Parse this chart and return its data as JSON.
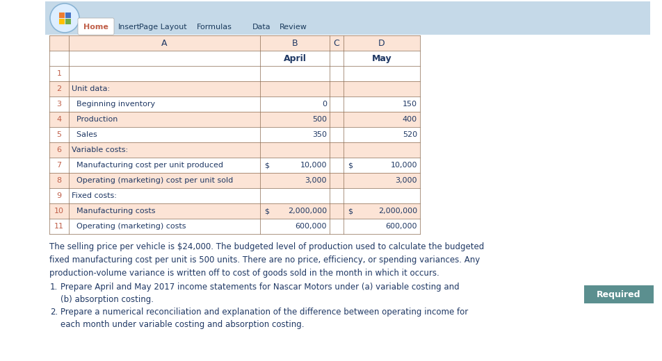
{
  "ribbon_tabs": [
    "Home",
    "Insert",
    "Page Layout",
    "Formulas",
    "Data",
    "Review"
  ],
  "col_b_label": "April",
  "col_d_label": "May",
  "paragraph_text": "The selling price per vehicle is $24,000. The budgeted level of production used to calculate the budgeted\nfixed manufacturing cost per unit is 500 units. There are no price, efficiency, or spending variances. Any\nproduction-volume variance is written off to cost of goods sold in the month in which it occurs.",
  "required_items": [
    "Prepare April and May 2017 income statements for Nascar Motors under (a) variable costing and\n(b) absorption costing.",
    "Prepare a numerical reconciliation and explanation of the difference between operating income for\neach month under variable costing and absorption costing."
  ],
  "required_label": "Required",
  "bg_color": "#ffffff",
  "ribbon_bg": "#c5d9e8",
  "row_number_color": "#c0604a",
  "cell_bg_alt": "#fce4d6",
  "cell_bg_header": "#fce4d6",
  "table_border_color": "#8a6a50",
  "text_color_blue": "#1f3864",
  "text_color_orange": "#c0604a",
  "required_bg": "#5b8f8f",
  "required_text_color": "#ffffff",
  "home_tab_bg": "#ffffff",
  "row_data": [
    {
      "rnum": "1",
      "label": "",
      "april": "",
      "may": "",
      "april_dollar": false,
      "may_dollar": false,
      "shaded": false
    },
    {
      "rnum": "2",
      "label": "Unit data:",
      "april": "",
      "may": "",
      "april_dollar": false,
      "may_dollar": false,
      "shaded": true
    },
    {
      "rnum": "3",
      "label": "  Beginning inventory",
      "april": "0",
      "may": "150",
      "april_dollar": false,
      "may_dollar": false,
      "shaded": false
    },
    {
      "rnum": "4",
      "label": "  Production",
      "april": "500",
      "may": "400",
      "april_dollar": false,
      "may_dollar": false,
      "shaded": true
    },
    {
      "rnum": "5",
      "label": "  Sales",
      "april": "350",
      "may": "520",
      "april_dollar": false,
      "may_dollar": false,
      "shaded": false
    },
    {
      "rnum": "6",
      "label": "Variable costs:",
      "april": "",
      "may": "",
      "april_dollar": false,
      "may_dollar": false,
      "shaded": true
    },
    {
      "rnum": "7",
      "label": "  Manufacturing cost per unit produced",
      "april": "10,000",
      "may": "10,000",
      "april_dollar": true,
      "may_dollar": true,
      "shaded": false
    },
    {
      "rnum": "8",
      "label": "  Operating (marketing) cost per unit sold",
      "april": "3,000",
      "may": "3,000",
      "april_dollar": false,
      "may_dollar": false,
      "shaded": true
    },
    {
      "rnum": "9",
      "label": "Fixed costs:",
      "april": "",
      "may": "",
      "april_dollar": false,
      "may_dollar": false,
      "shaded": false
    },
    {
      "rnum": "10",
      "label": "  Manufacturing costs",
      "april": "2,000,000",
      "may": "2,000,000",
      "april_dollar": true,
      "may_dollar": true,
      "shaded": true
    },
    {
      "rnum": "11",
      "label": "  Operating (marketing) costs",
      "april": "600,000",
      "may": "600,000",
      "april_dollar": false,
      "may_dollar": false,
      "shaded": false
    }
  ]
}
